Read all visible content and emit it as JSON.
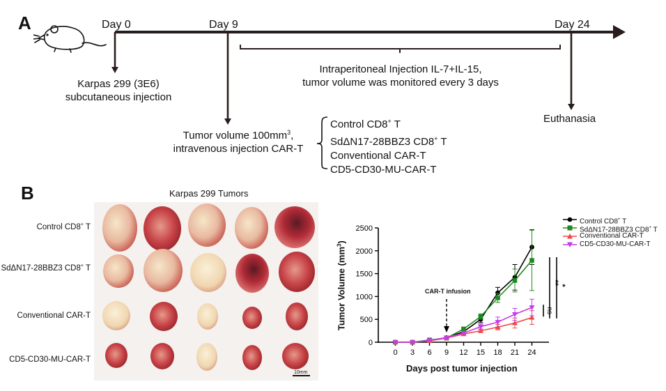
{
  "panel_a": {
    "letter": "A",
    "day_labels": [
      "Day 0",
      "Day 9",
      "Day 24"
    ],
    "day0_note_line1": "Karpas 299  (3E6)",
    "day0_note_line2": "subcutaneous injection",
    "day9_note_line1_main": "Tumor volume 100mm",
    "day9_note_line1_sup": "3",
    "day9_note_line1_end": ",",
    "day9_note_line2": "intravenous injection CAR-T",
    "bracket_line1": "Intraperitoneal Injection IL-7+IL-15,",
    "bracket_line2": "tumor volume was monitored every 3 days",
    "end_note": "Euthanasia",
    "groups": [
      {
        "pre": "Control CD8",
        "sup": "+",
        "post": " T"
      },
      {
        "pre": "SdΔN17-28BBZ3 CD8",
        "sup": "+",
        "post": " T"
      },
      {
        "pre": "Conventional CAR-T",
        "sup": "",
        "post": ""
      },
      {
        "pre": "CD5-CD30-MU-CAR-T",
        "sup": "",
        "post": ""
      }
    ]
  },
  "panel_b": {
    "letter": "B",
    "photo_title": "Karpas 299 Tumors",
    "row_labels": [
      {
        "pre": "Control CD8",
        "sup": "+",
        "post": " T"
      },
      {
        "pre": "SdΔN17-28BBZ3 CD8",
        "sup": "+",
        "post": " T"
      },
      {
        "pre": "Conventional CAR-T",
        "sup": "",
        "post": ""
      },
      {
        "pre": "CD5-CD30-MU-CAR-T",
        "sup": "",
        "post": ""
      }
    ],
    "scale_bar": "10mm"
  },
  "chart_data": {
    "type": "line",
    "xlabel": "Days post tumor injection",
    "ylabel": "Tumor Volume (mm³)",
    "ylabel_main": "Tumor Volume (mm",
    "ylabel_sup": "3",
    "ylabel_end": ")",
    "x": [
      0,
      3,
      6,
      9,
      12,
      15,
      18,
      21,
      24
    ],
    "ylim": [
      0,
      2500
    ],
    "yticks": [
      0,
      500,
      1000,
      1500,
      2000,
      2500
    ],
    "annotation": "CAR-T infusion",
    "annotation_x": 9,
    "legend_position": "top-right",
    "series": [
      {
        "name": "Control CD8⁺ T",
        "name_pre": "Control CD8",
        "name_sup": "+",
        "name_post": " T",
        "color": "#000000",
        "marker": "circle",
        "values": [
          0,
          0,
          40,
          100,
          230,
          500,
          1080,
          1420,
          2080
        ],
        "errors": [
          0,
          0,
          10,
          20,
          40,
          70,
          120,
          280,
          380
        ]
      },
      {
        "name": "SdΔN17-28BBZ3 CD8⁺ T",
        "name_pre": "SdΔN17-28BBZ3 CD8",
        "name_sup": "+",
        "name_post": " T",
        "color": "#1e8a1e",
        "marker": "square",
        "values": [
          0,
          0,
          50,
          90,
          290,
          560,
          970,
          1350,
          1790
        ],
        "errors": [
          0,
          0,
          10,
          20,
          40,
          60,
          100,
          250,
          660
        ]
      },
      {
        "name": "Conventional CAR-T",
        "name_pre": "Conventional CAR-T",
        "name_sup": "",
        "name_post": "",
        "color": "#f04848",
        "marker": "triangle-up",
        "values": [
          0,
          0,
          30,
          90,
          180,
          250,
          330,
          420,
          540
        ],
        "errors": [
          0,
          0,
          10,
          15,
          30,
          40,
          60,
          110,
          150
        ]
      },
      {
        "name": "CD5-CD30-MU-CAR-T",
        "name_pre": "CD5-CD30-MU-CAR-T",
        "name_sup": "",
        "name_post": "",
        "color": "#c43ce8",
        "marker": "triangle-down",
        "values": [
          0,
          0,
          40,
          100,
          200,
          340,
          440,
          610,
          760
        ],
        "errors": [
          0,
          0,
          10,
          20,
          30,
          60,
          110,
          130,
          180
        ]
      }
    ],
    "significance": [
      "ns",
      "**",
      "*"
    ]
  },
  "colors": {
    "timeline": "#2a1c1c",
    "control": "#000000",
    "sd": "#1e8a1e",
    "conventional": "#f04848",
    "cd5": "#c43ce8"
  }
}
